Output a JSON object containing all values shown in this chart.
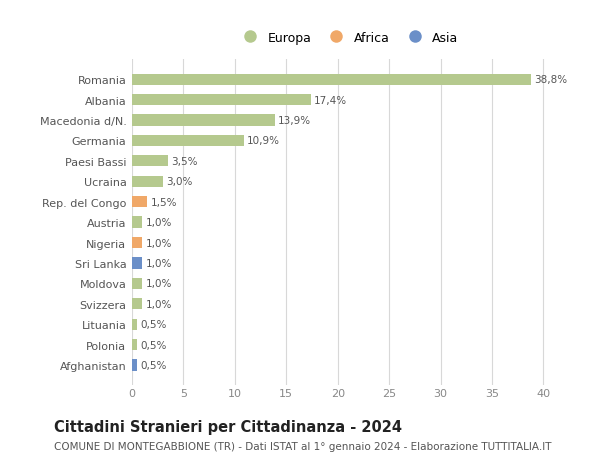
{
  "categories": [
    "Romania",
    "Albania",
    "Macedonia d/N.",
    "Germania",
    "Paesi Bassi",
    "Ucraina",
    "Rep. del Congo",
    "Austria",
    "Nigeria",
    "Sri Lanka",
    "Moldova",
    "Svizzera",
    "Lituania",
    "Polonia",
    "Afghanistan"
  ],
  "values": [
    38.8,
    17.4,
    13.9,
    10.9,
    3.5,
    3.0,
    1.5,
    1.0,
    1.0,
    1.0,
    1.0,
    1.0,
    0.5,
    0.5,
    0.5
  ],
  "labels": [
    "38,8%",
    "17,4%",
    "13,9%",
    "10,9%",
    "3,5%",
    "3,0%",
    "1,5%",
    "1,0%",
    "1,0%",
    "1,0%",
    "1,0%",
    "1,0%",
    "0,5%",
    "0,5%",
    "0,5%"
  ],
  "continents": [
    "Europa",
    "Europa",
    "Europa",
    "Europa",
    "Europa",
    "Europa",
    "Africa",
    "Europa",
    "Africa",
    "Asia",
    "Europa",
    "Europa",
    "Europa",
    "Europa",
    "Asia"
  ],
  "colors": {
    "Europa": "#b5c98e",
    "Africa": "#f0a868",
    "Asia": "#6b8fc8"
  },
  "xlim": [
    0,
    42
  ],
  "xticks": [
    0,
    5,
    10,
    15,
    20,
    25,
    30,
    35,
    40
  ],
  "title": "Cittadini Stranieri per Cittadinanza - 2024",
  "subtitle": "COMUNE DI MONTEGABBIONE (TR) - Dati ISTAT al 1° gennaio 2024 - Elaborazione TUTTITALIA.IT",
  "title_fontsize": 10.5,
  "subtitle_fontsize": 7.5,
  "background_color": "#ffffff",
  "grid_color": "#d8d8d8",
  "bar_height": 0.55
}
